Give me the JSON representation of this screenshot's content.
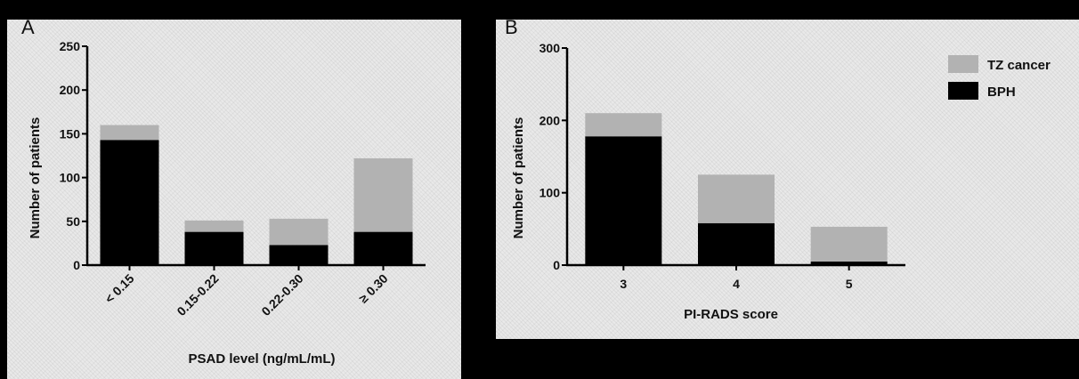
{
  "colors": {
    "tz_cancer": "#b2b2b2",
    "bph": "#000000"
  },
  "chart_data": [
    {
      "type": "bar",
      "panel_label": "A",
      "stacked": true,
      "categories": [
        "< 0.15",
        "0.15-0.22",
        "0.22-0.30",
        "≥ 0.30"
      ],
      "series": [
        {
          "name": "BPH",
          "values": [
            143,
            38,
            23,
            38
          ]
        },
        {
          "name": "TZ cancer",
          "values": [
            17,
            13,
            30,
            84
          ]
        }
      ],
      "xlabel": "PSAD level (ng/mL/mL)",
      "ylabel": "Number of patients",
      "ylim": [
        0,
        250
      ],
      "yticks": [
        "0",
        "50",
        "100",
        "150",
        "200",
        "250"
      ],
      "grid": false
    },
    {
      "type": "bar",
      "panel_label": "B",
      "stacked": true,
      "categories": [
        "3",
        "4",
        "5"
      ],
      "series": [
        {
          "name": "BPH",
          "values": [
            178,
            58,
            5
          ]
        },
        {
          "name": "TZ cancer",
          "values": [
            32,
            67,
            48
          ]
        }
      ],
      "xlabel": "PI-RADS score",
      "ylabel": "Number of patients",
      "ylim": [
        0,
        300
      ],
      "yticks": [
        "0",
        "100",
        "200",
        "300"
      ],
      "legend": {
        "placement": "top-right",
        "entries": [
          "TZ cancer",
          "BPH"
        ]
      },
      "grid": false
    }
  ]
}
